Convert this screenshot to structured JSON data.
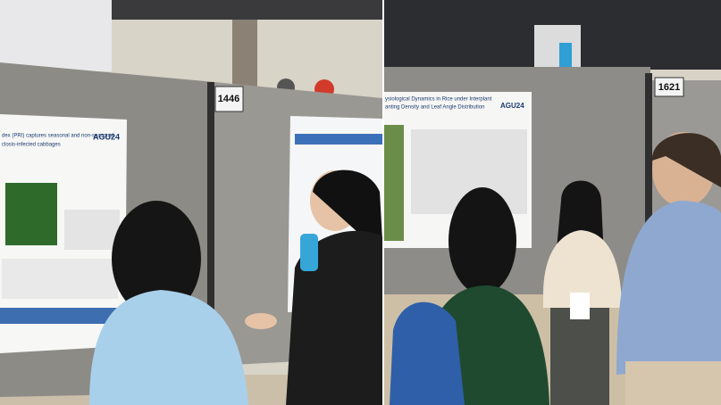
{
  "left_photo": {
    "booth_number": "1446",
    "poster": {
      "title_lines": [
        "dex (PRI) captures seasonal and non-seasonal",
        "closis-infected cabbages"
      ],
      "logo": "AGU24"
    }
  },
  "right_photo": {
    "booth_number": "1621",
    "poster": {
      "title_lines": [
        "ysiological Dynamics in Rice under Interplant",
        "anting Density and Leaf Angle Distribution"
      ],
      "logo": "AGU24"
    }
  }
}
